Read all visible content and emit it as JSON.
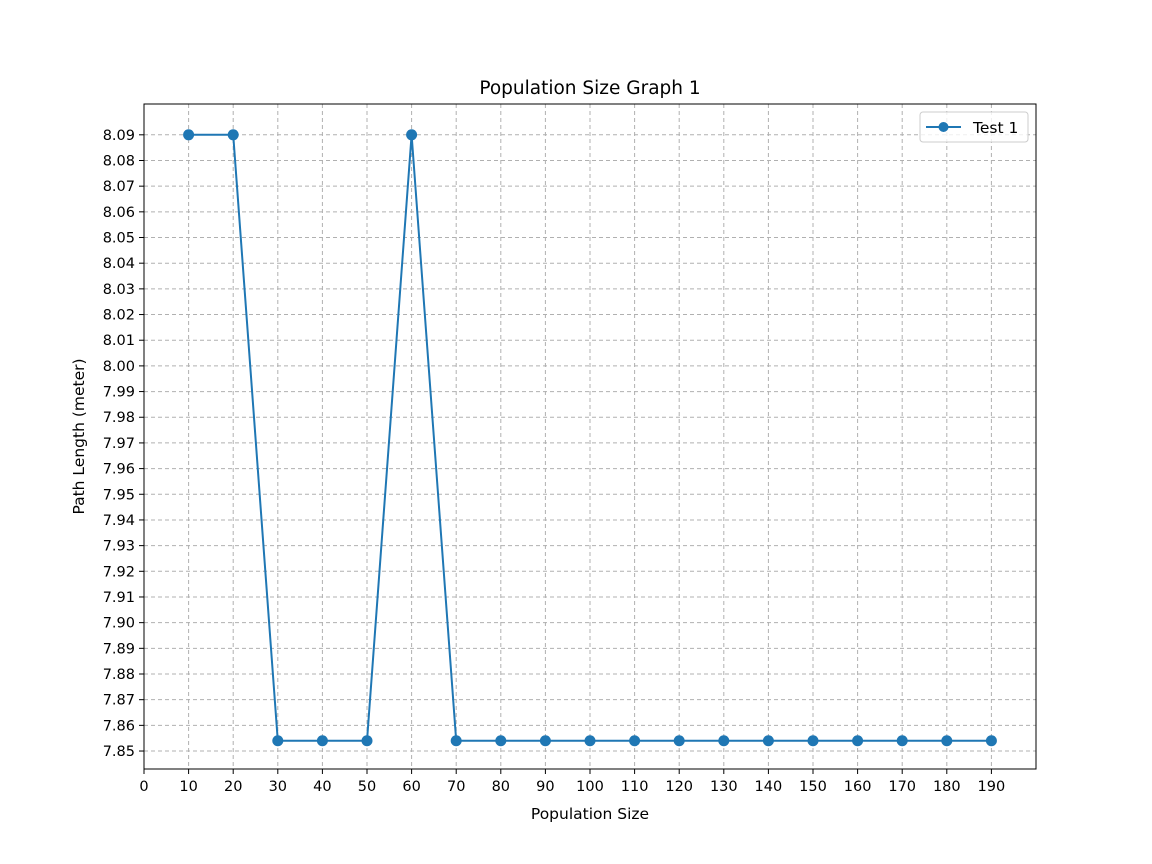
{
  "chart_data": {
    "type": "line",
    "title": "Population Size Graph 1",
    "xlabel": "Population Size",
    "ylabel": "Path Length (meter)",
    "xlim": [
      0,
      200
    ],
    "ylim": [
      7.843,
      8.102
    ],
    "xticks": [
      0,
      10,
      20,
      30,
      40,
      50,
      60,
      70,
      80,
      90,
      100,
      110,
      120,
      130,
      140,
      150,
      160,
      170,
      180,
      190
    ],
    "yticks": [
      7.85,
      7.86,
      7.87,
      7.88,
      7.89,
      7.9,
      7.91,
      7.92,
      7.93,
      7.94,
      7.95,
      7.96,
      7.97,
      7.98,
      7.99,
      8.0,
      8.01,
      8.02,
      8.03,
      8.04,
      8.05,
      8.06,
      8.07,
      8.08,
      8.09
    ],
    "grid": true,
    "legend_position": "top-right",
    "series": [
      {
        "name": "Test 1",
        "color": "#1f77b4",
        "marker": "circle",
        "x": [
          10,
          20,
          30,
          40,
          50,
          60,
          70,
          80,
          90,
          100,
          110,
          120,
          130,
          140,
          150,
          160,
          170,
          180,
          190
        ],
        "y": [
          8.09,
          8.09,
          7.854,
          7.854,
          7.854,
          8.09,
          7.854,
          7.854,
          7.854,
          7.854,
          7.854,
          7.854,
          7.854,
          7.854,
          7.854,
          7.854,
          7.854,
          7.854,
          7.854
        ]
      }
    ]
  }
}
